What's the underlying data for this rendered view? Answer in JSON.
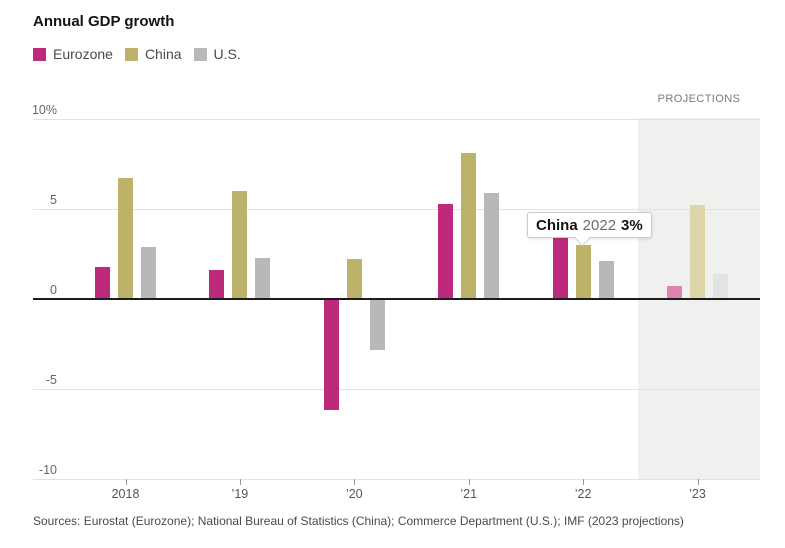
{
  "title": "Annual GDP growth",
  "legend": {
    "items": [
      {
        "label": "Eurozone",
        "color": "#bd2a7c"
      },
      {
        "label": "China",
        "color": "#bcb269"
      },
      {
        "label": "U.S.",
        "color": "#b8b8ba"
      }
    ]
  },
  "projections_label": "PROJECTIONS",
  "tooltip": {
    "series": "China",
    "year": "2022",
    "value": "3%"
  },
  "source": "Sources: Eurostat (Eurozone); National Bureau of Statistics (China); Commerce Department (U.S.); IMF (2023 projections)",
  "chart_data": {
    "type": "bar",
    "title": "Annual GDP growth",
    "unit": "percent",
    "categories": [
      "2018",
      "’19",
      "’20",
      "’21",
      "’22",
      "’23"
    ],
    "series": [
      {
        "name": "Eurozone",
        "color": "#bd2a7c",
        "projection_color": "#dd85ae",
        "values": [
          1.8,
          1.6,
          -6.1,
          5.3,
          3.5,
          0.7
        ]
      },
      {
        "name": "China",
        "color": "#bcb269",
        "projection_color": "#ddd6a8",
        "values": [
          6.7,
          6.0,
          2.2,
          8.1,
          3.0,
          5.2
        ]
      },
      {
        "name": "U.S.",
        "color": "#b8b8ba",
        "projection_color": "#e3e3e4",
        "values": [
          2.9,
          2.3,
          -2.8,
          5.9,
          2.1,
          1.4
        ]
      }
    ],
    "projection_category": "’23",
    "projection_band_color": "#f0f0ee",
    "ylim": [
      -10,
      10
    ],
    "yticks": [
      10,
      5,
      0,
      -5,
      -10
    ],
    "ytick_labels": [
      "10%",
      "5",
      "0",
      "-5",
      "-10"
    ],
    "grid": true,
    "legend_position": "top-left",
    "annotation": "China 2022 3%"
  }
}
